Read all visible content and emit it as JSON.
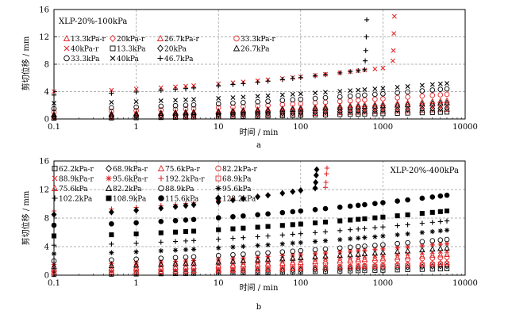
{
  "figure": {
    "panels": [
      "a",
      "b"
    ]
  },
  "colors": {
    "red": "#e0282b",
    "black": "#000000",
    "grid": "#9a9a9a",
    "axis": "#000000"
  },
  "chart_data": [
    {
      "type": "scatter",
      "panel": "a",
      "title": "XLP-20%-100kPa",
      "xlabel": "时间 / min",
      "ylabel": "剪切位移 / mm",
      "xscale": "log",
      "xlim": [
        0.1,
        10000
      ],
      "ylim": [
        0,
        16
      ],
      "xticks": [
        "0.1",
        "1",
        "10",
        "100",
        "1000",
        "10000"
      ],
      "yticks": [
        "0",
        "4",
        "8",
        "12",
        "16"
      ],
      "grid": true,
      "sample_times": [
        0.1,
        0.5,
        1,
        2,
        3,
        4,
        5,
        10,
        15,
        20,
        30,
        40,
        60,
        80,
        100,
        150,
        200,
        300,
        400,
        500,
        600,
        800,
        1000,
        1500,
        2000,
        3000,
        4000,
        5000,
        6000
      ],
      "legend": {
        "placement": "top-left",
        "entries": [
          {
            "label": "13.3kPa-r",
            "marker": "triangle-open",
            "color": "red"
          },
          {
            "label": "20kPa-r",
            "marker": "diamond-open",
            "color": "red"
          },
          {
            "label": "26.7kPa-r",
            "marker": "triangle-open",
            "color": "red"
          },
          {
            "label": "33.3kPa-r",
            "marker": "circle-open",
            "color": "red"
          },
          {
            "label": "40kPa-r",
            "marker": "x",
            "color": "red"
          },
          {
            "label": "13.3kPa",
            "marker": "square-open",
            "color": "black"
          },
          {
            "label": "20kPa",
            "marker": "diamond-open",
            "color": "black"
          },
          {
            "label": "26.7kPa",
            "marker": "triangle-open",
            "color": "black"
          },
          {
            "label": "33.3kPa",
            "marker": "circle-open",
            "color": "black"
          },
          {
            "label": "40kPa",
            "marker": "x",
            "color": "black"
          },
          {
            "label": "46.7kPa",
            "marker": "plus",
            "color": "black"
          }
        ]
      },
      "series": [
        {
          "name": "13.3kPa-r",
          "marker": "triangle-open",
          "color": "red",
          "y0": 0.2,
          "yend": 1.4,
          "tstart": 0.1,
          "tend": 6000
        },
        {
          "name": "20kPa-r",
          "marker": "diamond-open",
          "color": "red",
          "y0": 0.4,
          "yend": 2.0,
          "tstart": 0.1,
          "tend": 6000
        },
        {
          "name": "26.7kPa-r",
          "marker": "triangle-open",
          "color": "red",
          "y0": 0.7,
          "yend": 2.7,
          "tstart": 0.1,
          "tend": 6000
        },
        {
          "name": "33.3kPa-r",
          "marker": "circle-open",
          "color": "red",
          "y0": 1.0,
          "yend": 3.6,
          "tstart": 0.1,
          "tend": 6000
        },
        {
          "name": "40kPa-r",
          "marker": "x",
          "color": "red",
          "y0": 4.0,
          "yend": 7.6,
          "tstart": 0.1,
          "tend": 1300,
          "failure": [
            8.5,
            10.0,
            12.5,
            15.0
          ]
        },
        {
          "name": "13.3kPa",
          "marker": "square-open",
          "color": "black",
          "y0": 0.1,
          "yend": 1.0,
          "tstart": 0.1,
          "tend": 6000
        },
        {
          "name": "20kPa",
          "marker": "diamond-open",
          "color": "black",
          "y0": 0.3,
          "yend": 1.6,
          "tstart": 0.1,
          "tend": 6000
        },
        {
          "name": "26.7kPa",
          "marker": "triangle-open",
          "color": "black",
          "y0": 0.6,
          "yend": 2.4,
          "tstart": 0.1,
          "tend": 6000
        },
        {
          "name": "33.3kPa",
          "marker": "circle-open",
          "color": "black",
          "y0": 1.5,
          "yend": 4.4,
          "tstart": 0.1,
          "tend": 6000
        },
        {
          "name": "40kPa",
          "marker": "x",
          "color": "black",
          "y0": 2.3,
          "yend": 5.2,
          "tstart": 0.1,
          "tend": 6000
        },
        {
          "name": "46.7kPa",
          "marker": "plus",
          "color": "black",
          "y0": 3.5,
          "yend": 7.2,
          "tstart": 0.1,
          "tend": 600,
          "failure": [
            8.5,
            10.0,
            12.0,
            14.5
          ]
        }
      ]
    },
    {
      "type": "scatter",
      "panel": "b",
      "title": "XLP-20%-400kPa",
      "xlabel": "时间 / min",
      "ylabel": "剪切位移 / mm",
      "xscale": "log",
      "xlim": [
        0.1,
        10000
      ],
      "ylim": [
        0,
        16
      ],
      "xticks": [
        "0.1",
        "1",
        "10",
        "100",
        "1000",
        "10000"
      ],
      "yticks": [
        "0",
        "4",
        "8",
        "12",
        "16"
      ],
      "grid": true,
      "sample_times": [
        0.1,
        0.5,
        1,
        2,
        3,
        4,
        5,
        10,
        15,
        20,
        30,
        40,
        60,
        80,
        100,
        150,
        200,
        300,
        400,
        500,
        600,
        800,
        1000,
        1500,
        2000,
        3000,
        4000,
        5000,
        6000
      ],
      "legend": {
        "placement": "top-left",
        "entries": [
          {
            "label": "62.2kPa-r",
            "marker": "square-open",
            "color": "black"
          },
          {
            "label": "68.9kPa-r",
            "marker": "diamond-open",
            "color": "black"
          },
          {
            "label": "75.6kPa-r",
            "marker": "triangle-open",
            "color": "red"
          },
          {
            "label": "82.2kPa-r",
            "marker": "circle-open",
            "color": "red"
          },
          {
            "label": "88.9kPa-r",
            "marker": "x",
            "color": "red"
          },
          {
            "label": "95.6kPa-r",
            "marker": "asterisk",
            "color": "red"
          },
          {
            "label": "192.2kPa-r",
            "marker": "plus",
            "color": "red"
          },
          {
            "label": "68.9kPa",
            "marker": "square-open",
            "color": "red"
          },
          {
            "label": "75.6kPa",
            "marker": "triangle-open",
            "color": "red"
          },
          {
            "label": "82.2kPa",
            "marker": "triangle-open",
            "color": "black"
          },
          {
            "label": "88.9kPa",
            "marker": "circle-open",
            "color": "black"
          },
          {
            "label": "95.6kPa",
            "marker": "asterisk",
            "color": "black"
          },
          {
            "label": "102.2kPa",
            "marker": "plus",
            "color": "black"
          },
          {
            "label": "108.9kPa",
            "marker": "square-filled",
            "color": "black"
          },
          {
            "label": "115.6kPa",
            "marker": "circle-filled",
            "color": "black"
          },
          {
            "label": "122.2kPa",
            "marker": "diamond-filled",
            "color": "black"
          }
        ]
      },
      "series": [
        {
          "name": "62.2kPa-r",
          "marker": "square-open",
          "color": "black",
          "y0": 0.1,
          "yend": 0.9,
          "tstart": 0.1,
          "tend": 6000
        },
        {
          "name": "68.9kPa-r",
          "marker": "diamond-open",
          "color": "black",
          "y0": 0.2,
          "yend": 1.3,
          "tstart": 0.1,
          "tend": 6000
        },
        {
          "name": "75.6kPa-r",
          "marker": "triangle-open",
          "color": "red",
          "y0": 0.4,
          "yend": 1.8,
          "tstart": 0.1,
          "tend": 6000
        },
        {
          "name": "82.2kPa-r",
          "marker": "circle-open",
          "color": "red",
          "y0": 0.6,
          "yend": 2.5,
          "tstart": 0.1,
          "tend": 6000
        },
        {
          "name": "88.9kPa-r",
          "marker": "x",
          "color": "red",
          "y0": 1.0,
          "yend": 3.4,
          "tstart": 0.1,
          "tend": 6000
        },
        {
          "name": "95.6kPa-r",
          "marker": "asterisk",
          "color": "red",
          "y0": 1.5,
          "yend": 4.4,
          "tstart": 0.1,
          "tend": 6000
        },
        {
          "name": "192.2kPa-r",
          "marker": "plus",
          "color": "red",
          "y0": 9.0,
          "yend": 12.3,
          "tstart": 0.1,
          "tend": 200,
          "failure": [
            13.0,
            14.2,
            15.0
          ]
        },
        {
          "name": "68.9kPa",
          "marker": "square-open",
          "color": "red",
          "y0": 0.3,
          "yend": 1.6,
          "tstart": 0.1,
          "tend": 6000
        },
        {
          "name": "75.6kPa",
          "marker": "triangle-open",
          "color": "red",
          "y0": 0.8,
          "yend": 2.9,
          "tstart": 0.1,
          "tend": 6000
        },
        {
          "name": "82.2kPa",
          "marker": "triangle-open",
          "color": "black",
          "y0": 1.2,
          "yend": 3.8,
          "tstart": 0.1,
          "tend": 6000
        },
        {
          "name": "88.9kPa",
          "marker": "circle-open",
          "color": "black",
          "y0": 2.0,
          "yend": 5.0,
          "tstart": 0.1,
          "tend": 6000
        },
        {
          "name": "95.6kPa",
          "marker": "asterisk",
          "color": "black",
          "y0": 3.0,
          "yend": 6.3,
          "tstart": 0.1,
          "tend": 6000
        },
        {
          "name": "102.2kPa",
          "marker": "plus",
          "color": "black",
          "y0": 4.2,
          "yend": 7.6,
          "tstart": 0.1,
          "tend": 6000
        },
        {
          "name": "108.9kPa",
          "marker": "square-filled",
          "color": "black",
          "y0": 5.5,
          "yend": 9.0,
          "tstart": 0.1,
          "tend": 6000
        },
        {
          "name": "115.6kPa",
          "marker": "circle-filled",
          "color": "black",
          "y0": 7.0,
          "yend": 11.2,
          "tstart": 0.1,
          "tend": 6000
        },
        {
          "name": "122.2kPa",
          "marker": "diamond-filled",
          "color": "black",
          "y0": 8.5,
          "yend": 12.2,
          "tstart": 0.1,
          "tend": 150,
          "failure": [
            13.0,
            14.0,
            14.8
          ]
        }
      ]
    }
  ]
}
